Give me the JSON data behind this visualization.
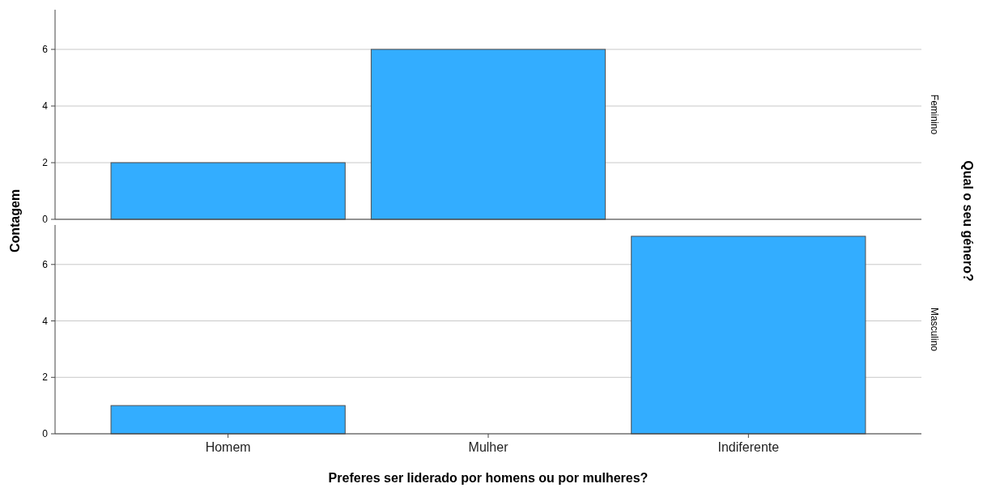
{
  "chart_data": [
    {
      "type": "bar",
      "y2label": "Feminino",
      "legend_title": "Qual o seu género?",
      "ylabel": "Contagem",
      "categories": [
        null,
        null,
        null
      ],
      "values": [
        2,
        6,
        0
      ],
      "color": "#33adff",
      "ylim": [
        0,
        7.4
      ],
      "yticks": [
        0,
        2,
        4,
        6
      ],
      "grid": "y",
      "tick_labels": "y"
    },
    {
      "type": "bar",
      "y2label": "Masculino",
      "xlabel": "Preferes ser liderado por homens ou por mulheres?",
      "categories": [
        "Homem",
        "Mulher",
        "Indiferente"
      ],
      "values": [
        1,
        0,
        7
      ],
      "color": "#33adff",
      "ylim": [
        0,
        7.4
      ],
      "yticks": [
        0,
        2,
        4,
        6
      ],
      "grid": "y"
    }
  ]
}
